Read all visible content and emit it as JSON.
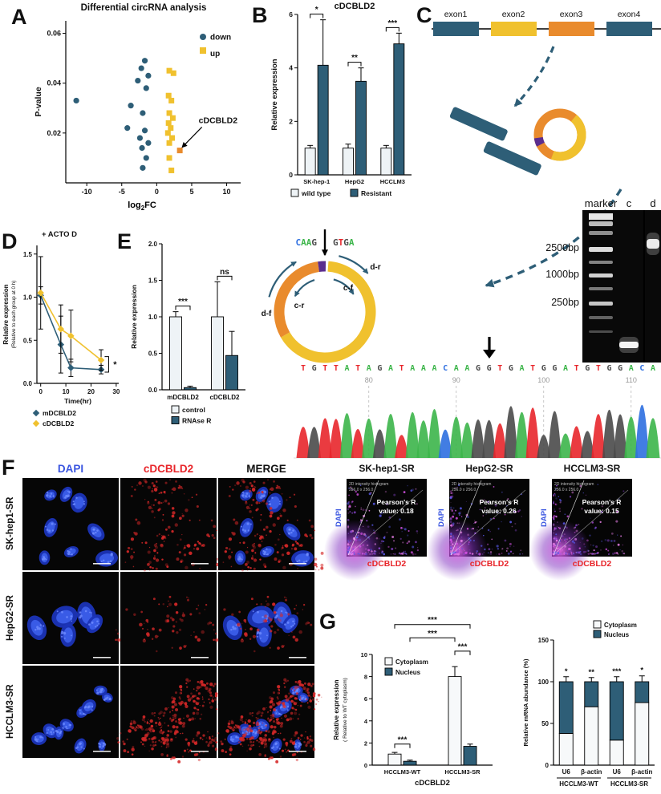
{
  "colors": {
    "dark": "#2e5e77",
    "yellow": "#f0c12e",
    "orange": "#e98b2d",
    "light_bar": "#eef3f6",
    "white_bar": "#f7f9fa",
    "red": "#e8262b",
    "blue_label": "#3a55e0",
    "purple": "#5b2d8e",
    "base_colors": {
      "A": "#3cb54a",
      "T": "#e8262b",
      "G": "#4a4a4a",
      "C": "#2e6fe0"
    }
  },
  "panels": {
    "A": {
      "letter": "A"
    },
    "B": {
      "letter": "B"
    },
    "C": {
      "letter": "C"
    },
    "D": {
      "letter": "D"
    },
    "E": {
      "letter": "E"
    },
    "F": {
      "letter": "F"
    },
    "G": {
      "letter": "G"
    }
  },
  "chart_data": [
    {
      "id": "A",
      "type": "scatter",
      "title": "Differential circRNA analysis",
      "xlabel": "log2FC",
      "ylabel": "P-value",
      "xlim": [
        -13,
        12
      ],
      "ylim": [
        0,
        0.065
      ],
      "xticks": [
        "-10",
        "-5",
        "0",
        "5",
        "10"
      ],
      "xtick_vals": [
        -10,
        -5,
        0,
        5,
        10
      ],
      "yticks": [
        "0.02",
        "0.04",
        "0.06"
      ],
      "ytick_vals": [
        0.02,
        0.04,
        0.06
      ],
      "legend": [
        "down",
        "up"
      ],
      "series": [
        {
          "name": "down",
          "marker": "circle",
          "color": "#2e5e77",
          "points": [
            [
              -11.5,
              0.033
            ],
            [
              -1.7,
              0.049
            ],
            [
              -2.2,
              0.046
            ],
            [
              -1.2,
              0.043
            ],
            [
              -2.7,
              0.041
            ],
            [
              -1.5,
              0.038
            ],
            [
              -3.7,
              0.031
            ],
            [
              -2.0,
              0.028
            ],
            [
              -4.2,
              0.022
            ],
            [
              -1.7,
              0.021
            ],
            [
              -2.4,
              0.018
            ],
            [
              -1.2,
              0.016
            ],
            [
              -2.1,
              0.014
            ],
            [
              -1.5,
              0.01
            ],
            [
              -2.0,
              0.006
            ]
          ]
        },
        {
          "name": "up",
          "marker": "square",
          "color": "#f0c12e",
          "points": [
            [
              1.8,
              0.045
            ],
            [
              2.4,
              0.044
            ],
            [
              1.7,
              0.035
            ],
            [
              2.1,
              0.033
            ],
            [
              1.8,
              0.028
            ],
            [
              2.3,
              0.026
            ],
            [
              1.7,
              0.024
            ],
            [
              2.0,
              0.022
            ],
            [
              1.6,
              0.02
            ],
            [
              2.2,
              0.018
            ],
            [
              1.8,
              0.016
            ],
            [
              1.8,
              0.01
            ],
            [
              2.1,
              0.005
            ]
          ]
        },
        {
          "name": "cDCBLD2",
          "marker": "square",
          "color": "#e98b2d",
          "points": [
            [
              3.3,
              0.013
            ]
          ]
        }
      ],
      "annotation": {
        "text": "cDCBLD2",
        "tx": 6.0,
        "ty": 0.024,
        "px": 3.3,
        "py": 0.013
      }
    },
    {
      "id": "B",
      "type": "grouped_bar",
      "title": "cDCBLD2",
      "ylabel": "Relative expression",
      "ylim": [
        0,
        6
      ],
      "yticks": [
        "0",
        "2",
        "4",
        "6"
      ],
      "ytick_vals": [
        0,
        2,
        4,
        6
      ],
      "categories": [
        "SK-hep-1",
        "HepG2",
        "HCCLM3"
      ],
      "series": [
        {
          "name": "wild type",
          "color": "#eef3f6",
          "values": [
            1.0,
            1.0,
            1.0
          ],
          "errors": [
            0.1,
            0.15,
            0.1
          ]
        },
        {
          "name": "Resistant",
          "color": "#2e5e77",
          "values": [
            4.1,
            3.5,
            4.9
          ],
          "errors": [
            1.7,
            0.5,
            0.4
          ]
        }
      ],
      "significance": [
        {
          "pair": [
            [
              0,
              0
            ],
            [
              0,
              1
            ]
          ],
          "label": "*"
        },
        {
          "pair": [
            [
              1,
              0
            ],
            [
              1,
              1
            ]
          ],
          "label": "**"
        },
        {
          "pair": [
            [
              2,
              0
            ],
            [
              2,
              1
            ]
          ],
          "label": "***"
        }
      ]
    },
    {
      "id": "D",
      "type": "line",
      "title": "+ ACTO D",
      "xlabel": "Time(hr)",
      "ylabel": "Relative expression",
      "ylabel2": "(Relative to each group at 0 h)",
      "xlim": [
        -1.5,
        31
      ],
      "ylim": [
        0,
        1.6
      ],
      "xticks": [
        "0",
        "10",
        "20",
        "30"
      ],
      "xtick_vals": [
        0,
        10,
        20,
        30
      ],
      "yticks": [
        "0.0",
        "0.5",
        "1.0",
        "1.5"
      ],
      "ytick_vals": [
        0,
        0.5,
        1.0,
        1.5
      ],
      "series": [
        {
          "name": "mDCBLD2",
          "color": "#2e5e77",
          "x": [
            0,
            8,
            12,
            24
          ],
          "y": [
            1.02,
            0.45,
            0.18,
            0.16
          ],
          "errors": [
            0.1,
            0.33,
            0.1,
            0.05
          ]
        },
        {
          "name": "cDCBLD2",
          "color": "#f0c12e",
          "x": [
            0,
            8,
            12,
            24
          ],
          "y": [
            1.05,
            0.63,
            0.55,
            0.27
          ],
          "errors": [
            0.42,
            0.28,
            0.3,
            0.12
          ]
        }
      ],
      "significance": "*"
    },
    {
      "id": "E",
      "type": "grouped_bar",
      "ylabel": "Relative expression",
      "ylim": [
        0,
        2
      ],
      "yticks": [
        "0.0",
        "0.5",
        "1.0",
        "1.5",
        "2.0"
      ],
      "ytick_vals": [
        0,
        0.5,
        1,
        1.5,
        2
      ],
      "categories": [
        "mDCBLD2",
        "cDCBLD2"
      ],
      "series": [
        {
          "name": "control",
          "color": "#eef3f6",
          "values": [
            1.0,
            1.0
          ],
          "errors": [
            0.07,
            0.48
          ]
        },
        {
          "name": "RNAse R",
          "color": "#2e5e77",
          "values": [
            0.03,
            0.47
          ],
          "errors": [
            0.02,
            0.33
          ]
        }
      ],
      "significance": [
        {
          "pair": [
            [
              0,
              0
            ],
            [
              0,
              1
            ]
          ],
          "label": "***"
        },
        {
          "pair": [
            [
              1,
              0
            ],
            [
              1,
              1
            ]
          ],
          "label": "ns"
        }
      ]
    },
    {
      "id": "G1",
      "type": "grouped_bar",
      "xlabel": "cDCBLD2",
      "ylabel": "Relative expression",
      "ylabel2": "( Relative to WT cytoplasm)",
      "ylim": [
        0,
        10
      ],
      "yticks": [
        "0",
        "2",
        "4",
        "6",
        "8",
        "10"
      ],
      "ytick_vals": [
        0,
        2,
        4,
        6,
        8,
        10
      ],
      "categories": [
        "HCCLM3-WT",
        "HCCLM3-SR"
      ],
      "series": [
        {
          "name": "Cytoplasm",
          "color": "#f7f9fa",
          "values": [
            1.0,
            8.0
          ],
          "errors": [
            0.15,
            0.9
          ]
        },
        {
          "name": "Nucleus",
          "color": "#2e5e77",
          "values": [
            0.35,
            1.7
          ],
          "errors": [
            0.1,
            0.2
          ]
        }
      ],
      "significance": [
        {
          "pair": [
            [
              0,
              0
            ],
            [
              0,
              1
            ]
          ],
          "label": "***",
          "h": 1.9
        },
        {
          "pair": [
            [
              1,
              0
            ],
            [
              1,
              1
            ]
          ],
          "label": "***",
          "h": 10.3
        },
        {
          "pair": [
            [
              0,
              1
            ],
            [
              1,
              0
            ]
          ],
          "label": "***",
          "h": 11.5
        },
        {
          "pair": [
            [
              0,
              0
            ],
            [
              1,
              1
            ]
          ],
          "label": "***",
          "h": 12.7
        }
      ]
    },
    {
      "id": "G2",
      "type": "stacked_bar",
      "ylabel": "Relative mRNA abundance (%)",
      "ylim": [
        0,
        150
      ],
      "yticks": [
        "0",
        "50",
        "100",
        "150"
      ],
      "ytick_vals": [
        0,
        50,
        100,
        150
      ],
      "categories": [
        "U6",
        "β-actin",
        "U6",
        "β-actin"
      ],
      "groups": [
        {
          "label": "HCCLM3-WT",
          "span": [
            0,
            1
          ]
        },
        {
          "label": "HCCLM3-SR",
          "span": [
            2,
            3
          ]
        }
      ],
      "series": [
        {
          "name": "Cytoplasm",
          "color": "#f7f9fa",
          "values": [
            38,
            70,
            30,
            75
          ]
        },
        {
          "name": "Nucleus",
          "color": "#2e5e77",
          "values": [
            62,
            30,
            70,
            25
          ]
        }
      ],
      "totals_errors": [
        6,
        5,
        6,
        7
      ],
      "significance": [
        "*",
        "**",
        "***",
        "*"
      ]
    }
  ],
  "exon_diagram": {
    "exons": [
      {
        "label": "exon1",
        "color": "#2e5e77"
      },
      {
        "label": "exon2",
        "color": "#f0c12e"
      },
      {
        "label": "exon3",
        "color": "#e98b2d"
      },
      {
        "label": "exon4",
        "color": "#2e5e77"
      }
    ]
  },
  "circle_diagram": {
    "junction_left": "CAAG",
    "junction_right": "GTGA",
    "primers": [
      "d-r",
      "c-f",
      "c-r",
      "d-f"
    ]
  },
  "gel": {
    "lane_labels": [
      "marker",
      "c",
      "d"
    ],
    "size_labels": [
      "2500bp",
      "1000bp",
      "250bp"
    ]
  },
  "chromatogram": {
    "sequence": "TGTTATAGATAAACAAGGTGATGGATGTGGACA",
    "position_labels": [
      "80",
      "90",
      "100",
      "110"
    ],
    "position_indices": [
      6,
      14,
      22,
      30
    ]
  },
  "microscopy": {
    "col_headers": [
      {
        "label": "DAPI",
        "color": "#3a55e0"
      },
      {
        "label": "cDCBLD2",
        "color": "#e8262b"
      },
      {
        "label": "MERGE",
        "color": "#111111"
      }
    ],
    "row_labels": [
      "SK-hep1-SR",
      "HepG2-SR",
      "HCCLM3-SR"
    ]
  },
  "colocalization": {
    "xlabel": "cDCBLD2",
    "ylabel": "DAPI",
    "plots": [
      {
        "title": "SK-hep1-SR",
        "hist_label": "2D intensity histogram",
        "dims": "256.0 x 256.0",
        "pearson_line1": "Pearson's R",
        "pearson_line2": "value: 0.18"
      },
      {
        "title": "HepG2-SR",
        "hist_label": "2D intensity histogram",
        "dims": "256.0 x 256.0",
        "pearson_line1": "Pearson's R",
        "pearson_line2": "value: 0.26"
      },
      {
        "title": "HCCLM3-SR",
        "hist_label": "2D intensity histogram",
        "dims": "256.0 x 256.0",
        "pearson_line1": "Pearson's R",
        "pearson_line2": "value: 0.15"
      }
    ]
  }
}
